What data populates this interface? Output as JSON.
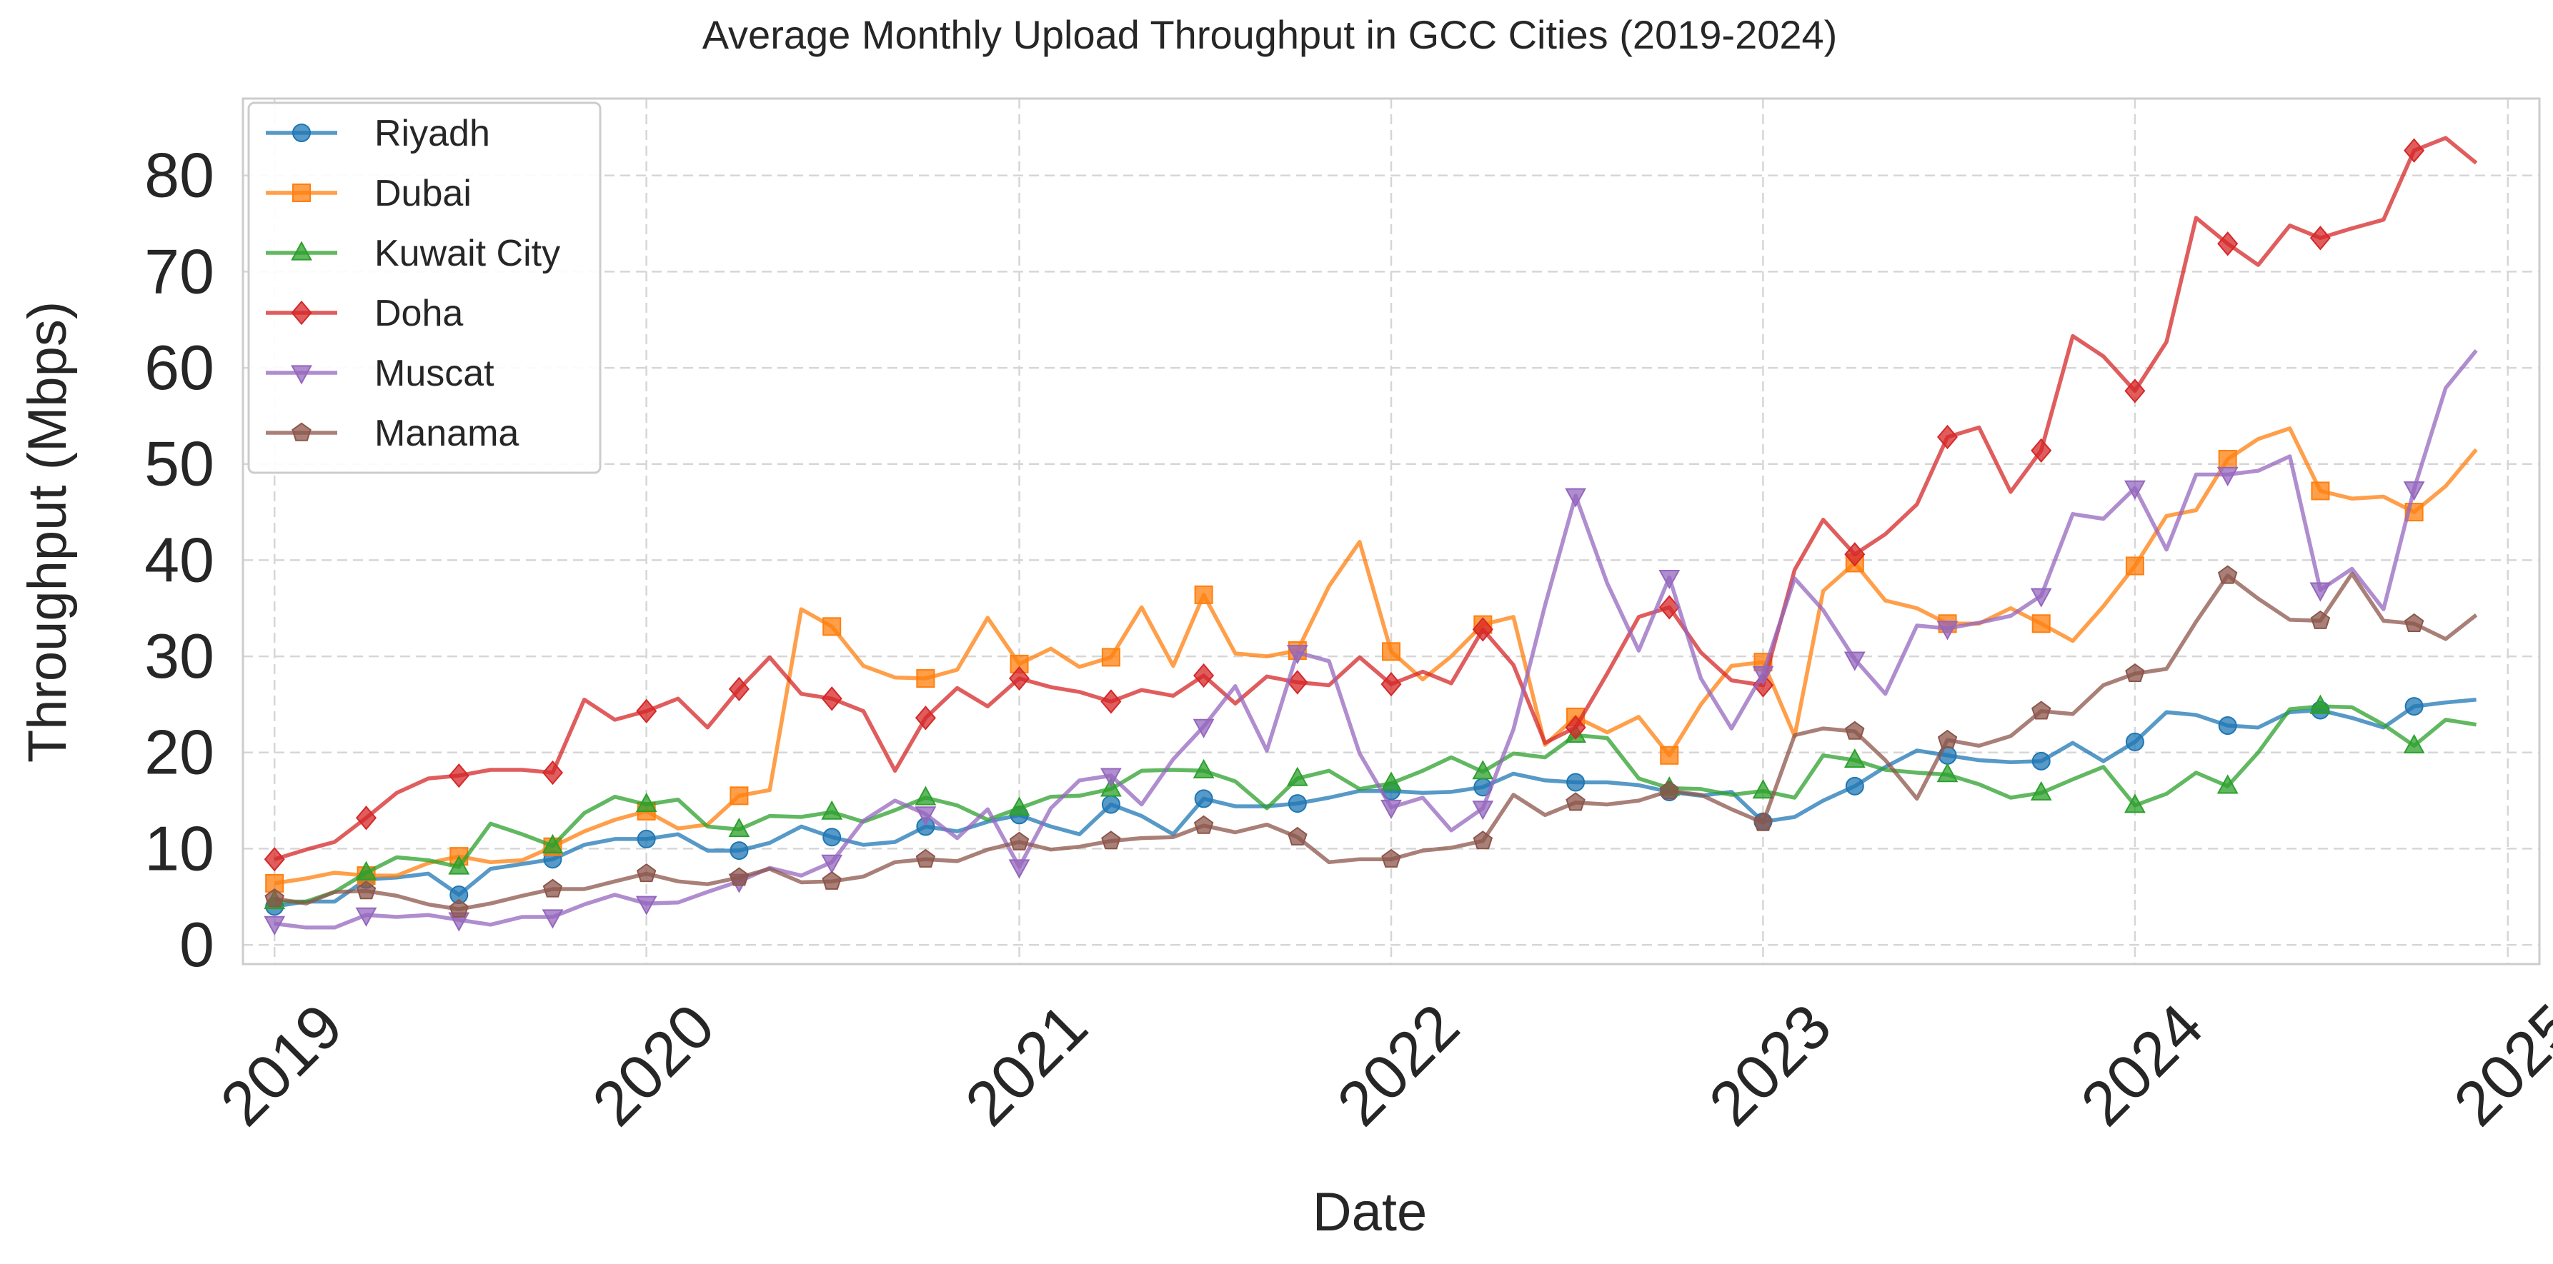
{
  "chart_data": {
    "type": "line",
    "title": "Average Monthly Upload Throughput in GCC Cities (2019-2024)",
    "xlabel": "Date",
    "ylabel": "Throughput (Mbps)",
    "xlim": [
      "2018-12-01",
      "2025-02-01"
    ],
    "ylim": [
      -2,
      88
    ],
    "x_ticks": [
      "2019",
      "2020",
      "2021",
      "2022",
      "2023",
      "2024",
      "2025"
    ],
    "y_ticks": [
      0,
      10,
      20,
      30,
      40,
      50,
      60,
      70,
      80
    ],
    "grid": true,
    "legend_position": "top-left",
    "x": [
      "2019-01",
      "2019-02",
      "2019-03",
      "2019-04",
      "2019-05",
      "2019-06",
      "2019-07",
      "2019-08",
      "2019-09",
      "2019-10",
      "2019-11",
      "2019-12",
      "2020-01",
      "2020-02",
      "2020-03",
      "2020-04",
      "2020-05",
      "2020-06",
      "2020-07",
      "2020-08",
      "2020-09",
      "2020-10",
      "2020-11",
      "2020-12",
      "2021-01",
      "2021-02",
      "2021-03",
      "2021-04",
      "2021-05",
      "2021-06",
      "2021-07",
      "2021-08",
      "2021-09",
      "2021-10",
      "2021-11",
      "2021-12",
      "2022-01",
      "2022-02",
      "2022-03",
      "2022-04",
      "2022-05",
      "2022-06",
      "2022-07",
      "2022-08",
      "2022-09",
      "2022-10",
      "2022-11",
      "2022-12",
      "2023-01",
      "2023-02",
      "2023-03",
      "2023-04",
      "2023-05",
      "2023-06",
      "2023-07",
      "2023-08",
      "2023-09",
      "2023-10",
      "2023-11",
      "2023-12",
      "2024-01",
      "2024-02",
      "2024-03",
      "2024-04",
      "2024-05",
      "2024-06",
      "2024-07",
      "2024-08",
      "2024-09",
      "2024-10",
      "2024-11",
      "2024-12"
    ],
    "series": [
      {
        "name": "Riyadh",
        "color": "#1f77b4",
        "marker": "circle",
        "values": [
          4.0,
          4.5,
          4.5,
          6.8,
          7.0,
          7.4,
          5.2,
          7.9,
          8.4,
          8.9,
          10.4,
          11.0,
          11.0,
          11.5,
          9.8,
          9.8,
          10.6,
          12.3,
          11.2,
          10.4,
          10.7,
          12.3,
          11.8,
          12.8,
          13.5,
          12.3,
          11.5,
          14.6,
          13.4,
          11.5,
          15.2,
          14.4,
          14.4,
          14.7,
          15.3,
          16.0,
          16.0,
          15.8,
          15.9,
          16.4,
          17.8,
          17.1,
          16.9,
          16.9,
          16.6,
          15.9,
          15.5,
          15.9,
          12.8,
          13.3,
          15.0,
          16.5,
          18.5,
          20.2,
          19.7,
          19.2,
          19.0,
          19.1,
          21.0,
          19.1,
          21.1,
          24.2,
          23.9,
          22.8,
          22.6,
          24.2,
          24.4,
          23.6,
          22.6,
          24.8,
          25.2,
          25.5
        ]
      },
      {
        "name": "Dubai",
        "color": "#ff7f0e",
        "marker": "square",
        "values": [
          6.4,
          6.9,
          7.5,
          7.2,
          7.2,
          8.5,
          9.2,
          8.6,
          8.8,
          10.2,
          11.8,
          13.0,
          13.9,
          12.1,
          12.5,
          15.5,
          16.1,
          34.9,
          33.1,
          29.0,
          27.8,
          27.7,
          28.6,
          34.0,
          29.2,
          30.8,
          28.9,
          29.9,
          35.1,
          29.0,
          36.4,
          30.3,
          30.0,
          30.6,
          37.3,
          41.9,
          30.5,
          27.6,
          30.0,
          33.3,
          34.1,
          20.8,
          23.7,
          22.1,
          23.7,
          19.7,
          25.0,
          29.0,
          29.4,
          21.7,
          36.8,
          39.7,
          35.8,
          35.0,
          33.4,
          33.4,
          35.0,
          33.4,
          31.6,
          35.2,
          39.4,
          44.6,
          45.2,
          50.5,
          52.6,
          53.7,
          47.2,
          46.4,
          46.6,
          45.0,
          47.7,
          51.5
        ]
      },
      {
        "name": "Kuwait City",
        "color": "#2ca02c",
        "marker": "triangle-up",
        "values": [
          4.5,
          4.5,
          5.5,
          7.5,
          9.1,
          8.8,
          8.1,
          12.6,
          11.5,
          10.3,
          13.7,
          15.4,
          14.6,
          15.1,
          12.3,
          12.0,
          13.4,
          13.3,
          13.8,
          12.8,
          14.0,
          15.3,
          14.5,
          13.0,
          14.2,
          15.4,
          15.5,
          16.2,
          18.1,
          18.2,
          18.1,
          17.0,
          14.2,
          17.3,
          18.1,
          16.2,
          16.8,
          18.1,
          19.5,
          18.0,
          19.9,
          19.5,
          21.8,
          21.5,
          17.3,
          16.3,
          16.2,
          15.6,
          16.0,
          15.3,
          19.7,
          19.2,
          18.2,
          17.9,
          17.7,
          16.7,
          15.3,
          15.8,
          17.2,
          18.5,
          14.5,
          15.7,
          17.9,
          16.5,
          20.0,
          24.5,
          24.8,
          24.7,
          22.9,
          20.7,
          23.4,
          22.9
        ]
      },
      {
        "name": "Doha",
        "color": "#d62728",
        "marker": "diamond",
        "values": [
          8.9,
          9.9,
          10.7,
          13.2,
          15.8,
          17.3,
          17.6,
          18.2,
          18.2,
          17.9,
          25.5,
          23.4,
          24.3,
          25.6,
          22.6,
          26.6,
          29.9,
          26.1,
          25.6,
          24.3,
          18.1,
          23.6,
          26.7,
          24.8,
          27.7,
          26.8,
          26.3,
          25.3,
          26.5,
          25.9,
          28.0,
          25.1,
          27.9,
          27.3,
          27.0,
          29.9,
          27.1,
          28.4,
          27.2,
          32.8,
          29.1,
          21.0,
          22.6,
          28.2,
          34.1,
          35.1,
          30.4,
          27.5,
          27.0,
          39.0,
          44.2,
          40.6,
          42.7,
          45.8,
          52.8,
          53.8,
          47.1,
          51.4,
          63.3,
          61.2,
          57.6,
          62.7,
          75.6,
          72.9,
          70.7,
          74.8,
          73.5,
          74.5,
          75.4,
          82.6,
          83.9,
          81.3
        ]
      },
      {
        "name": "Muscat",
        "color": "#9467bd",
        "marker": "triangle-down",
        "values": [
          2.2,
          1.8,
          1.8,
          3.1,
          2.9,
          3.1,
          2.6,
          2.1,
          2.9,
          2.9,
          4.2,
          5.2,
          4.3,
          4.4,
          5.5,
          6.6,
          8.0,
          7.2,
          8.6,
          12.9,
          15.0,
          13.6,
          11.1,
          14.1,
          8.1,
          14.2,
          17.1,
          17.6,
          14.6,
          19.3,
          22.7,
          26.9,
          20.2,
          30.4,
          29.5,
          19.9,
          14.3,
          15.3,
          11.9,
          14.2,
          22.4,
          35.3,
          46.7,
          37.6,
          30.6,
          38.2,
          27.7,
          22.5,
          28.2,
          38.1,
          34.8,
          29.7,
          26.1,
          33.2,
          32.9,
          33.5,
          34.2,
          36.3,
          44.8,
          44.3,
          47.5,
          41.1,
          48.9,
          48.9,
          49.3,
          50.8,
          36.9,
          39.1,
          34.9,
          47.4,
          57.9,
          61.8
        ]
      },
      {
        "name": "Manama",
        "color": "#8c564b",
        "marker": "pentagon",
        "values": [
          4.8,
          4.3,
          5.5,
          5.6,
          5.1,
          4.2,
          3.7,
          4.3,
          5.1,
          5.8,
          5.8,
          6.6,
          7.4,
          6.6,
          6.3,
          7.0,
          7.9,
          6.5,
          6.6,
          7.1,
          8.6,
          8.9,
          8.7,
          9.9,
          10.7,
          9.9,
          10.2,
          10.8,
          11.1,
          11.2,
          12.4,
          11.7,
          12.5,
          11.2,
          8.6,
          8.9,
          8.9,
          9.8,
          10.1,
          10.8,
          15.6,
          13.5,
          14.8,
          14.6,
          15.0,
          16.0,
          15.6,
          14.1,
          12.7,
          21.8,
          22.5,
          22.2,
          19.2,
          15.2,
          21.3,
          20.7,
          21.7,
          24.3,
          24.0,
          27.0,
          28.2,
          28.7,
          33.6,
          38.4,
          36.0,
          33.8,
          33.7,
          38.6,
          33.7,
          33.4,
          31.8,
          34.3
        ]
      }
    ]
  }
}
